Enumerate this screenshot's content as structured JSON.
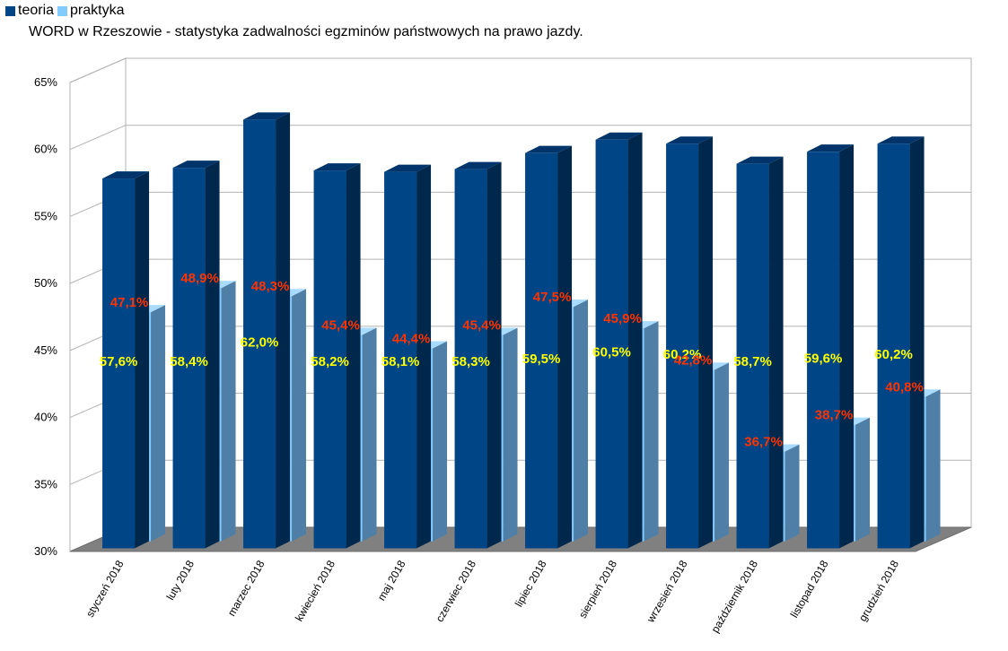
{
  "legend": {
    "series1": "teoria",
    "series2": "praktyka"
  },
  "title": "WORD w Rzeszowie - statystyka zadwalności egzminów państwowych na prawo jazdy.",
  "chart_data": {
    "type": "bar",
    "subtype": "3d-clustered",
    "title": "WORD w Rzeszowie - statystyka zadwalności egzminów państwowych na prawo jazdy.",
    "categories": [
      "styczeń 2018",
      "luty 2018",
      "marzec 2018",
      "kwiecień 2018",
      "maj 2018",
      "czerwiec 2018",
      "lipiec 2018",
      "sierpień 2018",
      "wrzesień 2018",
      "październik 2018",
      "listopad 2018",
      "grudzień 2018"
    ],
    "series": [
      {
        "name": "teoria",
        "values": [
          57.6,
          58.4,
          62.0,
          58.2,
          58.1,
          58.3,
          59.5,
          60.5,
          60.2,
          58.7,
          59.6,
          60.2
        ],
        "labels": [
          "57,6%",
          "58,4%",
          "62,0%",
          "58,2%",
          "58,1%",
          "58,3%",
          "59,5%",
          "60,5%",
          "60,2%",
          "58,7%",
          "59,6%",
          "60,2%"
        ],
        "color": "#004586",
        "label_color": "#ffff00"
      },
      {
        "name": "praktyka",
        "values": [
          47.1,
          48.9,
          48.3,
          45.4,
          44.4,
          45.4,
          47.5,
          45.9,
          42.8,
          36.7,
          38.7,
          40.8
        ],
        "labels": [
          "47,1%",
          "48,9%",
          "48,3%",
          "45,4%",
          "44,4%",
          "45,4%",
          "47,5%",
          "45,9%",
          "42,8%",
          "36,7%",
          "38,7%",
          "40,8%"
        ],
        "color": "#83caff",
        "label_color": "#ff3300"
      }
    ],
    "yticks": [
      "30%",
      "35%",
      "40%",
      "45%",
      "50%",
      "55%",
      "60%",
      "65%"
    ],
    "ylim": [
      30,
      65
    ],
    "grid": true,
    "legend_position": "top-left"
  }
}
